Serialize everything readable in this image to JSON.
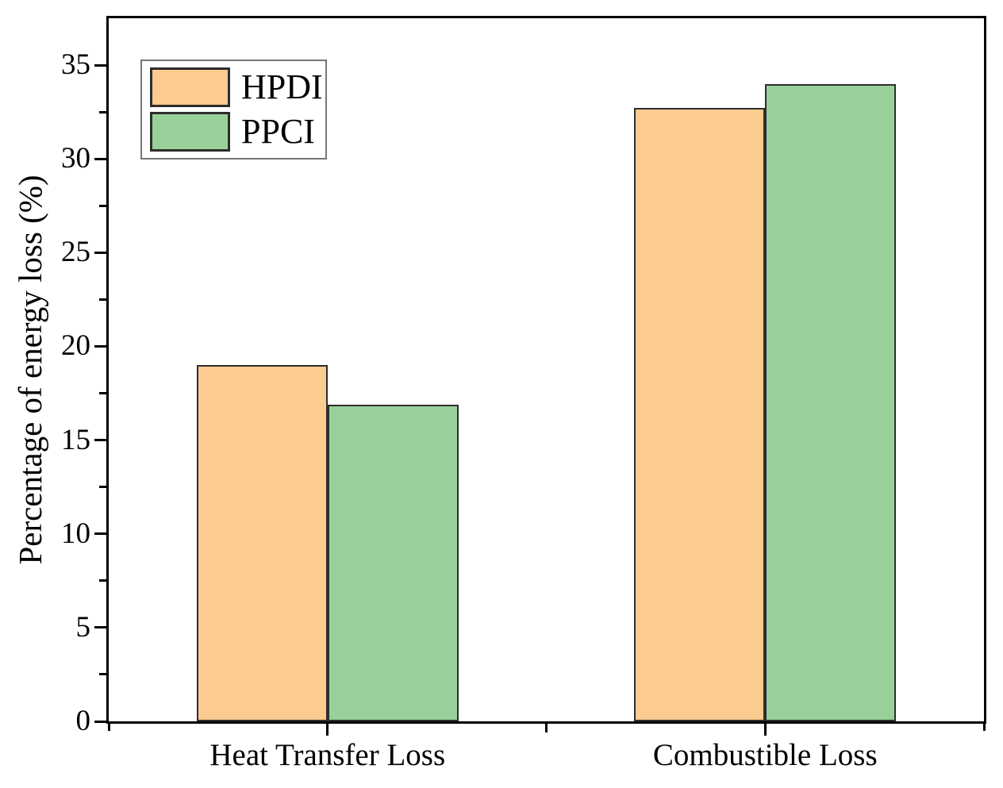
{
  "figure": {
    "background_color": "#ffffff",
    "axis_color": "#000000",
    "text_color": "#000000"
  },
  "chart_data": {
    "type": "bar",
    "title": "",
    "categories": [
      "Heat Transfer Loss",
      "Combustible Loss"
    ],
    "series": [
      {
        "name": "HPDI",
        "color": "#FBCB8F",
        "edge_color": "#2d2d2d",
        "values": [
          19.0,
          32.7
        ]
      },
      {
        "name": "PPCI",
        "color": "#99D099",
        "edge_color": "#2d2d2d",
        "values": [
          16.9,
          34.0
        ]
      }
    ],
    "xlabel": "",
    "ylabel": "Percentage of energy loss (%)",
    "ylim": [
      0,
      37.5
    ],
    "yticks": [
      0,
      5,
      10,
      15,
      20,
      25,
      30,
      35
    ],
    "ytick_step": 5,
    "yminor_step": 2.5,
    "xminor_at_fraction": 0.5,
    "grid": false,
    "legend": {
      "position": "top-left",
      "entries": [
        "HPDI",
        "PPCI"
      ]
    }
  }
}
